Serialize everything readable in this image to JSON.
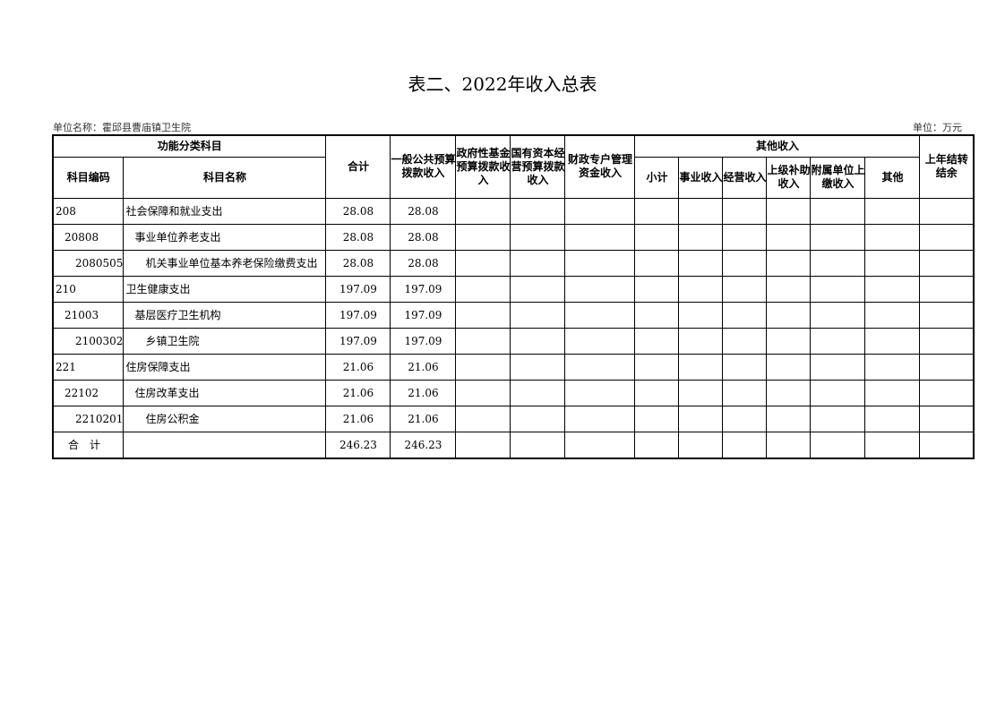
{
  "title": "表二、2022年收入总表",
  "unit_name": "单位名称：霍邱县曹庙镇卫生院",
  "unit": "单位：万元",
  "headers": {
    "func": "功能分类科目",
    "code": "科目编码",
    "name": "科目名称",
    "total": "合计",
    "general": "一般公共预算拨款收入",
    "gov_fund": "政府性基金预算拨款收入",
    "state_capital": "国有资本经营预算拨款收入",
    "fiscal_account": "财政专户管理资金收入",
    "other": "其他收入",
    "subtotal": "小计",
    "business": "事业收入",
    "operating": "经营收入",
    "superior": "上级补助收入",
    "affiliated": "附属单位上缴收入",
    "others": "其他",
    "carryover": "上年结转结余"
  },
  "rows": [
    {
      "code": "208",
      "name": "社会保障和就业支出",
      "total": "28.08",
      "general": "28.08",
      "level": 0
    },
    {
      "code": "20808",
      "name": "事业单位养老支出",
      "total": "28.08",
      "general": "28.08",
      "level": 1
    },
    {
      "code": "2080505",
      "name": "机关事业单位基本养老保险缴费支出",
      "total": "28.08",
      "general": "28.08",
      "level": 2
    },
    {
      "code": "210",
      "name": "卫生健康支出",
      "total": "197.09",
      "general": "197.09",
      "level": 0
    },
    {
      "code": "21003",
      "name": "基层医疗卫生机构",
      "total": "197.09",
      "general": "197.09",
      "level": 1
    },
    {
      "code": "2100302",
      "name": "乡镇卫生院",
      "total": "197.09",
      "general": "197.09",
      "level": 2
    },
    {
      "code": "221",
      "name": "住房保障支出",
      "total": "21.06",
      "general": "21.06",
      "level": 0
    },
    {
      "code": "22102",
      "name": "住房改革支出",
      "total": "21.06",
      "general": "21.06",
      "level": 1
    },
    {
      "code": "2210201",
      "name": "住房公积金",
      "total": "21.06",
      "general": "21.06",
      "level": 2
    }
  ],
  "sum": {
    "label": "合　计",
    "total": "246.23",
    "general": "246.23"
  }
}
